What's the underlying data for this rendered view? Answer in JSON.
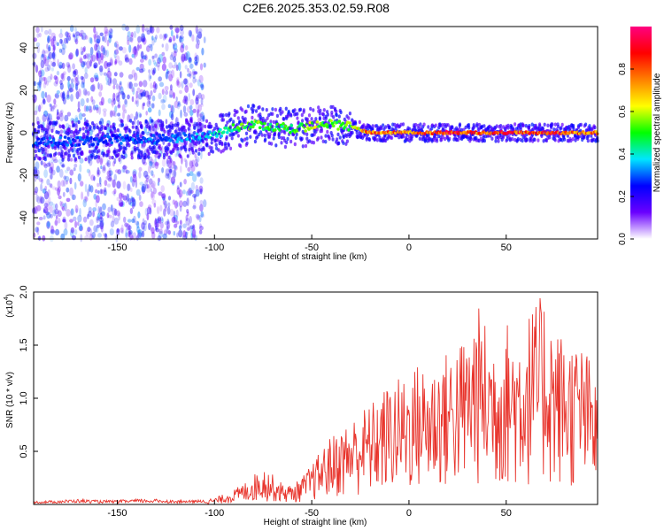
{
  "title": "C2E6.2025.353.02.59.R08",
  "colorbar": {
    "label": "Normalized spectral amplitude",
    "ticks": [
      "0.0",
      "0.2",
      "0.4",
      "0.6",
      "0.8"
    ],
    "tick_values": [
      0.0,
      0.2,
      0.4,
      0.6,
      0.8
    ],
    "range": [
      0,
      1
    ],
    "colormap": [
      "#ffffff",
      "#6a00ff",
      "#0000ff",
      "#00e5ff",
      "#00ff00",
      "#ffff00",
      "#ff8000",
      "#ff0000",
      "#ff0080"
    ]
  },
  "chart_data": [
    {
      "type": "heatmap",
      "title": "C2E6.2025.353.02.59.R08",
      "xlabel": "Height of straight line (km)",
      "ylabel": "Frequency (Hz)",
      "xlim": [
        -193,
        97
      ],
      "ylim": [
        -50,
        50
      ],
      "x_ticks": [
        -150,
        -100,
        -50,
        0,
        50
      ],
      "x_tick_labels": [
        "-150",
        "-100",
        "-50",
        "0",
        "50"
      ],
      "y_ticks": [
        -40,
        -20,
        0,
        20,
        40
      ],
      "y_tick_labels": [
        "-40",
        "-20",
        "0",
        "20",
        "40"
      ],
      "ridge": {
        "x": [
          -193,
          -170,
          -150,
          -130,
          -110,
          -100,
          -90,
          -80,
          -70,
          -60,
          -50,
          -40,
          -30,
          -20,
          -10,
          0,
          10,
          20,
          30,
          40,
          50,
          60,
          70,
          80,
          90,
          97
        ],
        "frequency": [
          -4,
          -4,
          -3,
          -3,
          -2,
          -1,
          2,
          4,
          3,
          2,
          3,
          4,
          3,
          0,
          0,
          0,
          0,
          0,
          0,
          0,
          0,
          0,
          0,
          0,
          0,
          0
        ],
        "amplitude": [
          0.3,
          0.3,
          0.3,
          0.32,
          0.35,
          0.4,
          0.5,
          0.55,
          0.5,
          0.5,
          0.6,
          0.55,
          0.55,
          0.85,
          0.8,
          0.8,
          0.85,
          0.9,
          0.85,
          0.8,
          0.9,
          0.85,
          0.9,
          0.85,
          0.8,
          0.8
        ]
      },
      "scatter_region": {
        "x": [
          -193,
          -105
        ],
        "frequency": [
          -50,
          50
        ],
        "amplitude": [
          0,
          0.25
        ]
      }
    },
    {
      "type": "line",
      "xlabel": "Height of straight line (km)",
      "ylabel": "SNR (10 * v/v)",
      "y_multiplier": "(x10",
      "y_multiplier_exp": "4",
      "y_multiplier_close": ")",
      "xlim": [
        -193,
        97
      ],
      "ylim": [
        0,
        2.0
      ],
      "x_ticks": [
        -150,
        -100,
        -50,
        0,
        50
      ],
      "x_tick_labels": [
        "-150",
        "-100",
        "-50",
        "0",
        "50"
      ],
      "y_ticks": [
        0.5,
        1.0,
        1.5,
        2.0
      ],
      "y_tick_labels": [
        "0.5",
        "1.0",
        "1.5",
        "2.0"
      ],
      "color": "#e8342c",
      "x": [
        -193,
        -180,
        -170,
        -160,
        -150,
        -140,
        -130,
        -120,
        -110,
        -100,
        -95,
        -90,
        -85,
        -80,
        -75,
        -72,
        -70,
        -65,
        -60,
        -55,
        -50,
        -45,
        -40,
        -35,
        -30,
        -25,
        -20,
        -15,
        -10,
        -5,
        0,
        5,
        10,
        15,
        20,
        25,
        30,
        35,
        40,
        45,
        50,
        55,
        60,
        65,
        70,
        75,
        80,
        85,
        90,
        95,
        97
      ],
      "envelope": [
        0.03,
        0.04,
        0.05,
        0.04,
        0.04,
        0.05,
        0.05,
        0.04,
        0.04,
        0.06,
        0.1,
        0.14,
        0.2,
        0.28,
        0.36,
        0.32,
        0.28,
        0.2,
        0.18,
        0.26,
        0.38,
        0.52,
        0.65,
        0.72,
        0.8,
        0.9,
        0.95,
        1.05,
        1.15,
        1.2,
        1.25,
        1.35,
        1.3,
        1.4,
        1.45,
        1.55,
        1.6,
        1.9,
        1.7,
        1.6,
        1.75,
        1.65,
        1.8,
        1.9,
        2.0,
        1.7,
        1.6,
        1.55,
        1.5,
        1.3,
        1.0
      ]
    }
  ]
}
